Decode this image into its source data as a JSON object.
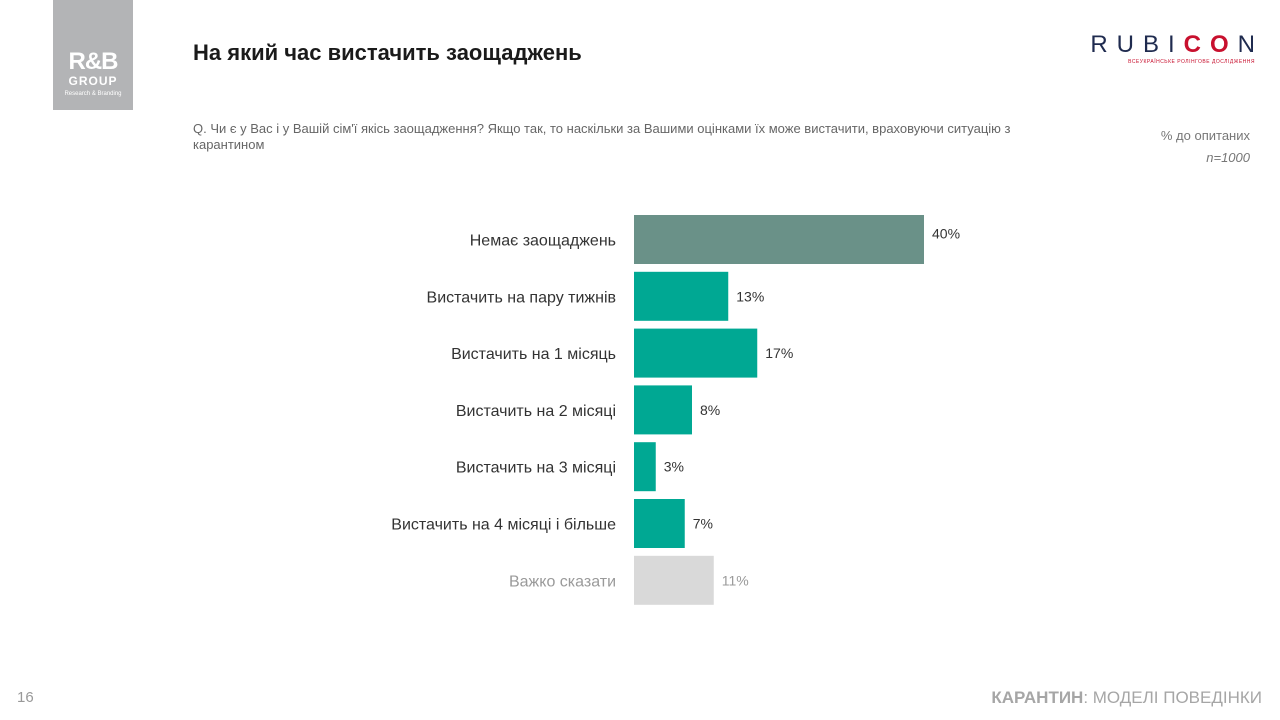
{
  "logo": {
    "main": "R&B",
    "sub": "GROUP",
    "tagline": "Research & Branding"
  },
  "title": "На який час вистачить заощаджень",
  "brand": {
    "pre": "RUBI",
    "accent": "CO",
    "post": "N",
    "tagline": "ВСЕУКРАЇНСЬКЕ РОЛІНГОВЕ ДОСЛІДЖЕННЯ"
  },
  "question": "Q. Чи є у Вас і у Вашій сім'ї якісь заощадження? Якщо так, то наскільки за Вашими оцінками їх може вистачити, враховуючи ситуацію з карантином",
  "base": {
    "unit": "% до опитаних",
    "n": "n=1000"
  },
  "colors": {
    "no_savings": "#6a9188",
    "savings": "#00a893",
    "hard_to_say": "#d9d9d9"
  },
  "chart_data": {
    "type": "bar",
    "orientation": "horizontal",
    "categories": [
      "Немає заощаджень",
      "Вистачить на пару тижнів",
      "Вистачить на 1 місяць",
      "Вистачить на 2 місяці",
      "Вистачить на 3 місяці",
      "Вистачить на 4 місяці і більше",
      "Важко сказати"
    ],
    "values": [
      40,
      13,
      17,
      8,
      3,
      7,
      11
    ],
    "labels": [
      "40%",
      "13%",
      "17%",
      "8%",
      "3%",
      "7%",
      "11%"
    ],
    "groups": [
      "no_savings",
      "savings",
      "savings",
      "savings",
      "savings",
      "savings",
      "hard_to_say"
    ],
    "xlim": [
      0,
      40
    ],
    "unit": "%",
    "grid": false
  },
  "footer": {
    "page": "16",
    "section_bold": "КАРАНТИН",
    "section_rest": ": МОДЕЛІ ПОВЕДІНКИ"
  }
}
